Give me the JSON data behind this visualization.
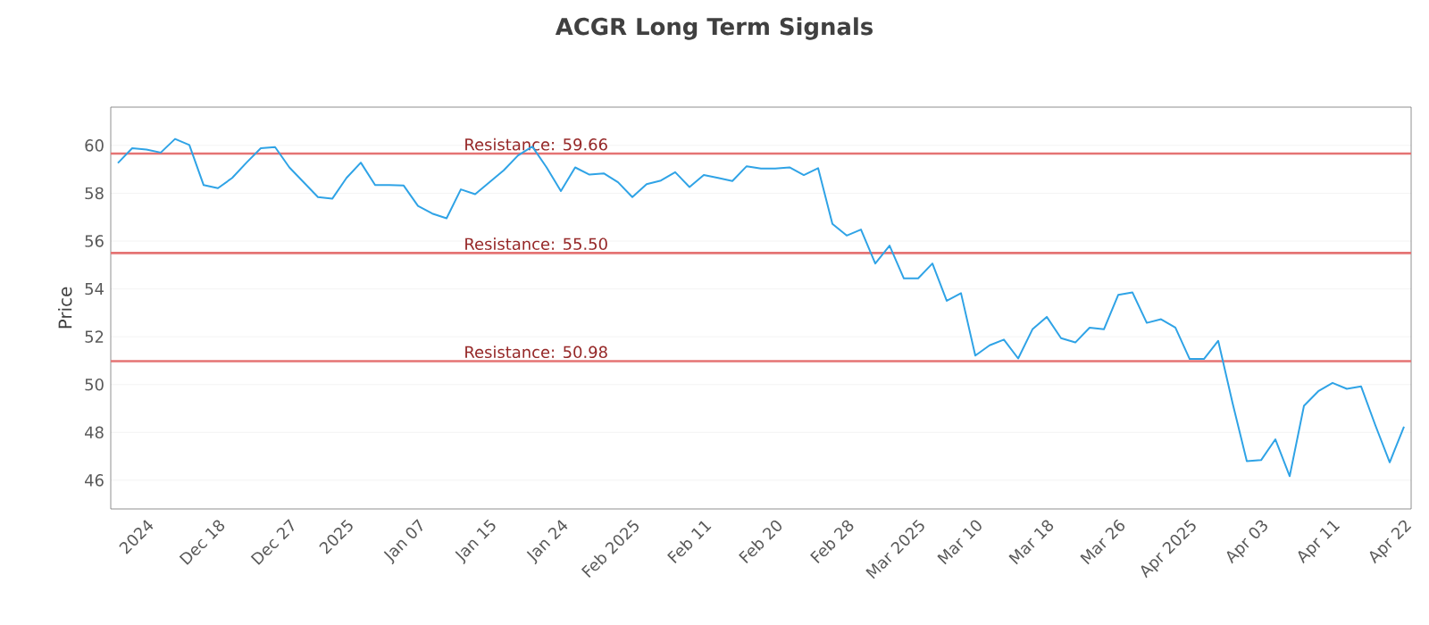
{
  "chart_data": {
    "type": "line",
    "title": "ACGR Long Term Signals",
    "ylabel": "Price",
    "categories": [
      null,
      null,
      "2024",
      null,
      null,
      null,
      null,
      "Dec 18",
      null,
      null,
      null,
      null,
      "Dec 27",
      null,
      null,
      null,
      "2025",
      null,
      null,
      null,
      null,
      "Jan 07",
      null,
      null,
      null,
      null,
      "Jan 15",
      null,
      null,
      null,
      null,
      "Jan 24",
      null,
      null,
      null,
      null,
      "Feb 2025",
      null,
      null,
      null,
      null,
      "Feb 11",
      null,
      null,
      null,
      null,
      "Feb 20",
      null,
      null,
      null,
      null,
      "Feb 28",
      null,
      null,
      null,
      null,
      "Mar 2025",
      null,
      null,
      null,
      "Mar 10",
      null,
      null,
      null,
      null,
      "Mar 18",
      null,
      null,
      null,
      null,
      "Mar 26",
      null,
      null,
      null,
      null,
      "Apr 2025",
      null,
      null,
      null,
      null,
      "Apr 03",
      null,
      null,
      null,
      null,
      "Apr 11",
      null,
      null,
      null,
      null,
      "Apr 22"
    ],
    "series": [
      {
        "color": "#2fa3e6",
        "values": [
          59.26,
          59.88,
          59.83,
          59.7,
          60.27,
          60.02,
          58.34,
          58.21,
          58.64,
          59.28,
          59.88,
          59.93,
          59.08,
          58.46,
          57.84,
          57.77,
          58.64,
          59.28,
          58.34,
          58.34,
          58.32,
          57.47,
          57.15,
          56.95,
          58.16,
          57.96,
          58.46,
          58.96,
          59.58,
          59.95,
          59.08,
          58.09,
          59.08,
          58.78,
          58.83,
          58.46,
          57.84,
          58.38,
          58.53,
          58.88,
          58.26,
          58.76,
          58.64,
          58.51,
          59.13,
          59.03,
          59.03,
          59.08,
          58.76,
          59.05,
          56.72,
          56.23,
          56.48,
          55.06,
          55.81,
          54.44,
          54.44,
          55.06,
          53.5,
          53.82,
          51.21,
          51.64,
          51.88,
          51.09,
          52.31,
          52.83,
          51.94,
          51.76,
          52.38,
          52.31,
          53.75,
          53.85,
          52.58,
          52.73,
          52.38,
          51.07,
          51.07,
          51.83,
          49.23,
          46.8,
          46.84,
          47.71,
          46.17,
          49.11,
          49.72,
          50.07,
          49.82,
          49.92,
          48.29,
          46.75,
          48.24
        ]
      }
    ],
    "ylim": [
      44.8,
      61.6
    ],
    "yticks": [
      46,
      48,
      50,
      52,
      54,
      56,
      58,
      60
    ],
    "grid": "y",
    "marker": "none",
    "line_style": "solid",
    "ref_lines": [
      {
        "axis": "y",
        "value": 59.66,
        "label": "Resistance: 59.66",
        "color": "#e57373"
      },
      {
        "axis": "y",
        "value": 55.5,
        "label": "Resistance: 55.50",
        "color": "#e57373"
      },
      {
        "axis": "y",
        "value": 50.98,
        "label": "Resistance: 50.98",
        "color": "#e57373"
      }
    ]
  }
}
